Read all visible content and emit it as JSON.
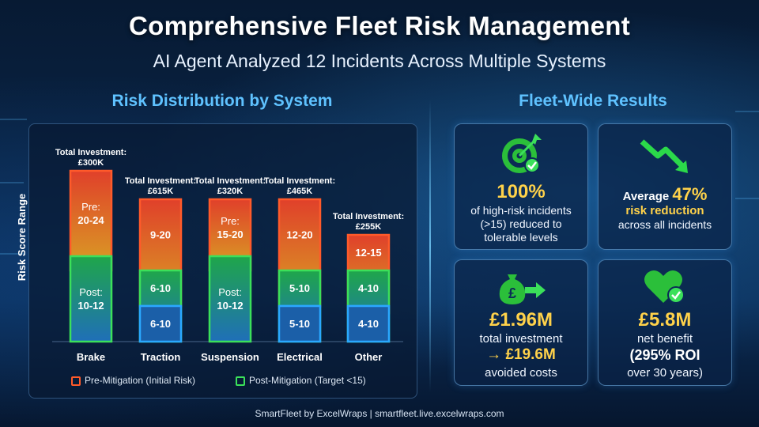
{
  "header": {
    "title": "Comprehensive Fleet Risk Management",
    "subtitle": "AI Agent Analyzed 12 Incidents Across Multiple Systems"
  },
  "left_heading": "Risk Distribution by System",
  "right_heading": "Fleet-Wide Results",
  "chart_data": {
    "type": "bar",
    "title": "Risk Distribution by System",
    "ylabel": "Risk Score Range",
    "categories": [
      "Brake",
      "Traction",
      "Suspension",
      "Electrical",
      "Other"
    ],
    "investment_labels": [
      "Total Investment:",
      "Total Investment:",
      "Total Investment:",
      "Total Investment:",
      "Total Investment:"
    ],
    "investments": [
      "£300K",
      "£615K",
      "£320K",
      "£465K",
      "£255K"
    ],
    "series": [
      {
        "name": "Pre-Mitigation (Initial Risk)",
        "color": "#ff5a2a",
        "labels": [
          "Pre:\n20-24",
          "9-20",
          "Pre:\n15-20",
          "12-20",
          "12-15"
        ],
        "ranges": [
          [
            10,
            24
          ],
          [
            5,
            20
          ],
          [
            10,
            20
          ],
          [
            5,
            20
          ],
          [
            4,
            15
          ]
        ]
      },
      {
        "name": "Post-Mitigation (Target <15)",
        "color": "#3be05a",
        "labels": [
          "Post:\n10-12",
          "6-10",
          "Post:\n10-12",
          "5-10",
          "4-10"
        ],
        "ranges": [
          [
            0,
            12
          ],
          [
            0,
            10
          ],
          [
            0,
            12
          ],
          [
            0,
            10
          ],
          [
            0,
            10
          ]
        ]
      }
    ],
    "lower_labels": [
      "",
      "6-10",
      "",
      "5-10",
      "4-10"
    ],
    "legend_position": "bottom"
  },
  "cards": [
    {
      "value": "100%",
      "lines": [
        "of high-risk incidents",
        "(>15) reduced to",
        "tolerable levels"
      ],
      "icon": "target-icon"
    },
    {
      "prefix": "Average",
      "value": "47%",
      "highlight": "risk reduction",
      "lines": [
        "across all incidents"
      ],
      "icon": "trend-down-icon"
    },
    {
      "value": "£1.96M",
      "lines": [
        "total investment"
      ],
      "arrow_value": "→ £19.6M",
      "tail": "avoided costs",
      "icon": "money-bag-icon"
    },
    {
      "value": "£5.8M",
      "lines": [
        "net benefit"
      ],
      "bold_line": "(295% ROI",
      "tail": "over 30 years)",
      "icon": "heart-check-icon"
    }
  ],
  "footer": "SmartFleet by ExcelWraps | smartfleet.live.excelwraps.com"
}
